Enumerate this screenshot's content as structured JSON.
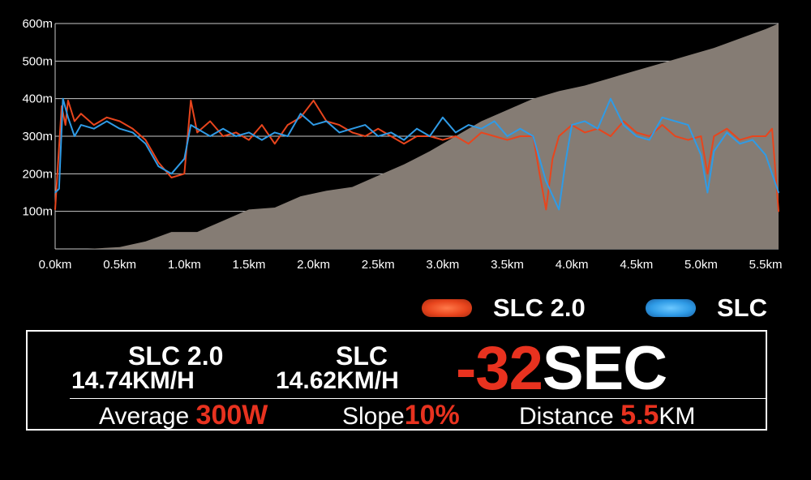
{
  "chart_data": {
    "type": "line",
    "x_unit": "km",
    "y_unit": "m",
    "xlim": [
      0.0,
      5.6
    ],
    "ylim": [
      0,
      600
    ],
    "x_ticks": [
      "0.0km",
      "0.5km",
      "1.0km",
      "1.5km",
      "2.0km",
      "2.5km",
      "3.0km",
      "3.5km",
      "4.0km",
      "4.5km",
      "5.0km",
      "5.5km"
    ],
    "y_ticks": [
      "100m",
      "200m",
      "300m",
      "400m",
      "500m",
      "600m"
    ],
    "grid": true,
    "legend_position": "bottom-right",
    "elevation_area": {
      "color": "#857c74",
      "x": [
        0.0,
        0.25,
        0.5,
        0.7,
        0.9,
        1.1,
        1.3,
        1.5,
        1.7,
        1.9,
        2.1,
        2.3,
        2.5,
        2.7,
        2.9,
        3.1,
        3.3,
        3.5,
        3.7,
        3.9,
        4.1,
        4.3,
        4.5,
        4.7,
        4.9,
        5.1,
        5.3,
        5.5,
        5.6
      ],
      "y": [
        0,
        0,
        5,
        20,
        45,
        45,
        75,
        105,
        110,
        140,
        155,
        165,
        195,
        225,
        260,
        300,
        340,
        370,
        400,
        420,
        435,
        455,
        475,
        495,
        515,
        535,
        560,
        585,
        600
      ]
    },
    "series": [
      {
        "name": "SLC 2.0",
        "color": "#e8451d",
        "x": [
          0.0,
          0.05,
          0.08,
          0.1,
          0.15,
          0.2,
          0.3,
          0.4,
          0.5,
          0.6,
          0.7,
          0.8,
          0.9,
          1.0,
          1.05,
          1.1,
          1.2,
          1.3,
          1.4,
          1.5,
          1.6,
          1.7,
          1.8,
          1.9,
          2.0,
          2.1,
          2.2,
          2.3,
          2.4,
          2.5,
          2.6,
          2.7,
          2.8,
          2.9,
          3.0,
          3.1,
          3.2,
          3.3,
          3.4,
          3.5,
          3.6,
          3.7,
          3.75,
          3.8,
          3.85,
          3.9,
          4.0,
          4.1,
          4.2,
          4.3,
          4.4,
          4.5,
          4.6,
          4.7,
          4.8,
          4.9,
          5.0,
          5.05,
          5.1,
          5.2,
          5.3,
          5.4,
          5.5,
          5.55,
          5.6
        ],
        "y": [
          105,
          380,
          330,
          395,
          340,
          360,
          330,
          350,
          340,
          320,
          290,
          230,
          190,
          200,
          395,
          310,
          340,
          300,
          310,
          290,
          330,
          280,
          330,
          350,
          395,
          340,
          330,
          310,
          300,
          320,
          300,
          280,
          300,
          300,
          290,
          300,
          280,
          310,
          300,
          290,
          300,
          300,
          200,
          105,
          240,
          300,
          330,
          310,
          320,
          300,
          340,
          310,
          300,
          330,
          300,
          290,
          300,
          200,
          300,
          320,
          290,
          300,
          300,
          320,
          100
        ]
      },
      {
        "name": "SLC",
        "color": "#2f9be6",
        "x": [
          0.0,
          0.03,
          0.06,
          0.1,
          0.15,
          0.2,
          0.3,
          0.4,
          0.5,
          0.6,
          0.7,
          0.8,
          0.9,
          1.0,
          1.05,
          1.1,
          1.2,
          1.3,
          1.4,
          1.5,
          1.6,
          1.7,
          1.8,
          1.9,
          2.0,
          2.1,
          2.2,
          2.3,
          2.4,
          2.5,
          2.6,
          2.7,
          2.8,
          2.9,
          3.0,
          3.1,
          3.2,
          3.3,
          3.4,
          3.5,
          3.6,
          3.7,
          3.75,
          3.8,
          3.9,
          3.95,
          4.0,
          4.1,
          4.2,
          4.3,
          4.4,
          4.5,
          4.6,
          4.7,
          4.8,
          4.9,
          5.0,
          5.05,
          5.1,
          5.2,
          5.3,
          5.4,
          5.5,
          5.55,
          5.6
        ],
        "y": [
          150,
          160,
          400,
          350,
          300,
          330,
          320,
          340,
          320,
          310,
          280,
          220,
          200,
          240,
          330,
          320,
          300,
          320,
          300,
          310,
          290,
          310,
          300,
          360,
          330,
          340,
          310,
          320,
          330,
          300,
          310,
          290,
          320,
          300,
          350,
          310,
          330,
          320,
          340,
          300,
          320,
          300,
          240,
          180,
          105,
          230,
          330,
          340,
          320,
          400,
          330,
          300,
          290,
          350,
          340,
          330,
          250,
          150,
          260,
          310,
          280,
          290,
          250,
          200,
          150
        ]
      }
    ]
  },
  "legend": {
    "items": [
      {
        "label": "SLC 2.0",
        "color": "#e8451d"
      },
      {
        "label": "SLC",
        "color": "#2f9be6"
      }
    ]
  },
  "summary": {
    "riders": [
      {
        "name": "SLC 2.0",
        "speed": "14.74KM/H"
      },
      {
        "name": "SLC",
        "speed": "14.62KM/H"
      }
    ],
    "difference": {
      "value": "-32",
      "unit": "SEC"
    },
    "stats": [
      {
        "label": "Average",
        "value": "300",
        "unit": "W"
      },
      {
        "label": "Slope",
        "value": "10%",
        "unit": ""
      },
      {
        "label": "Distance",
        "value": "5.5",
        "unit": "KM"
      }
    ]
  }
}
